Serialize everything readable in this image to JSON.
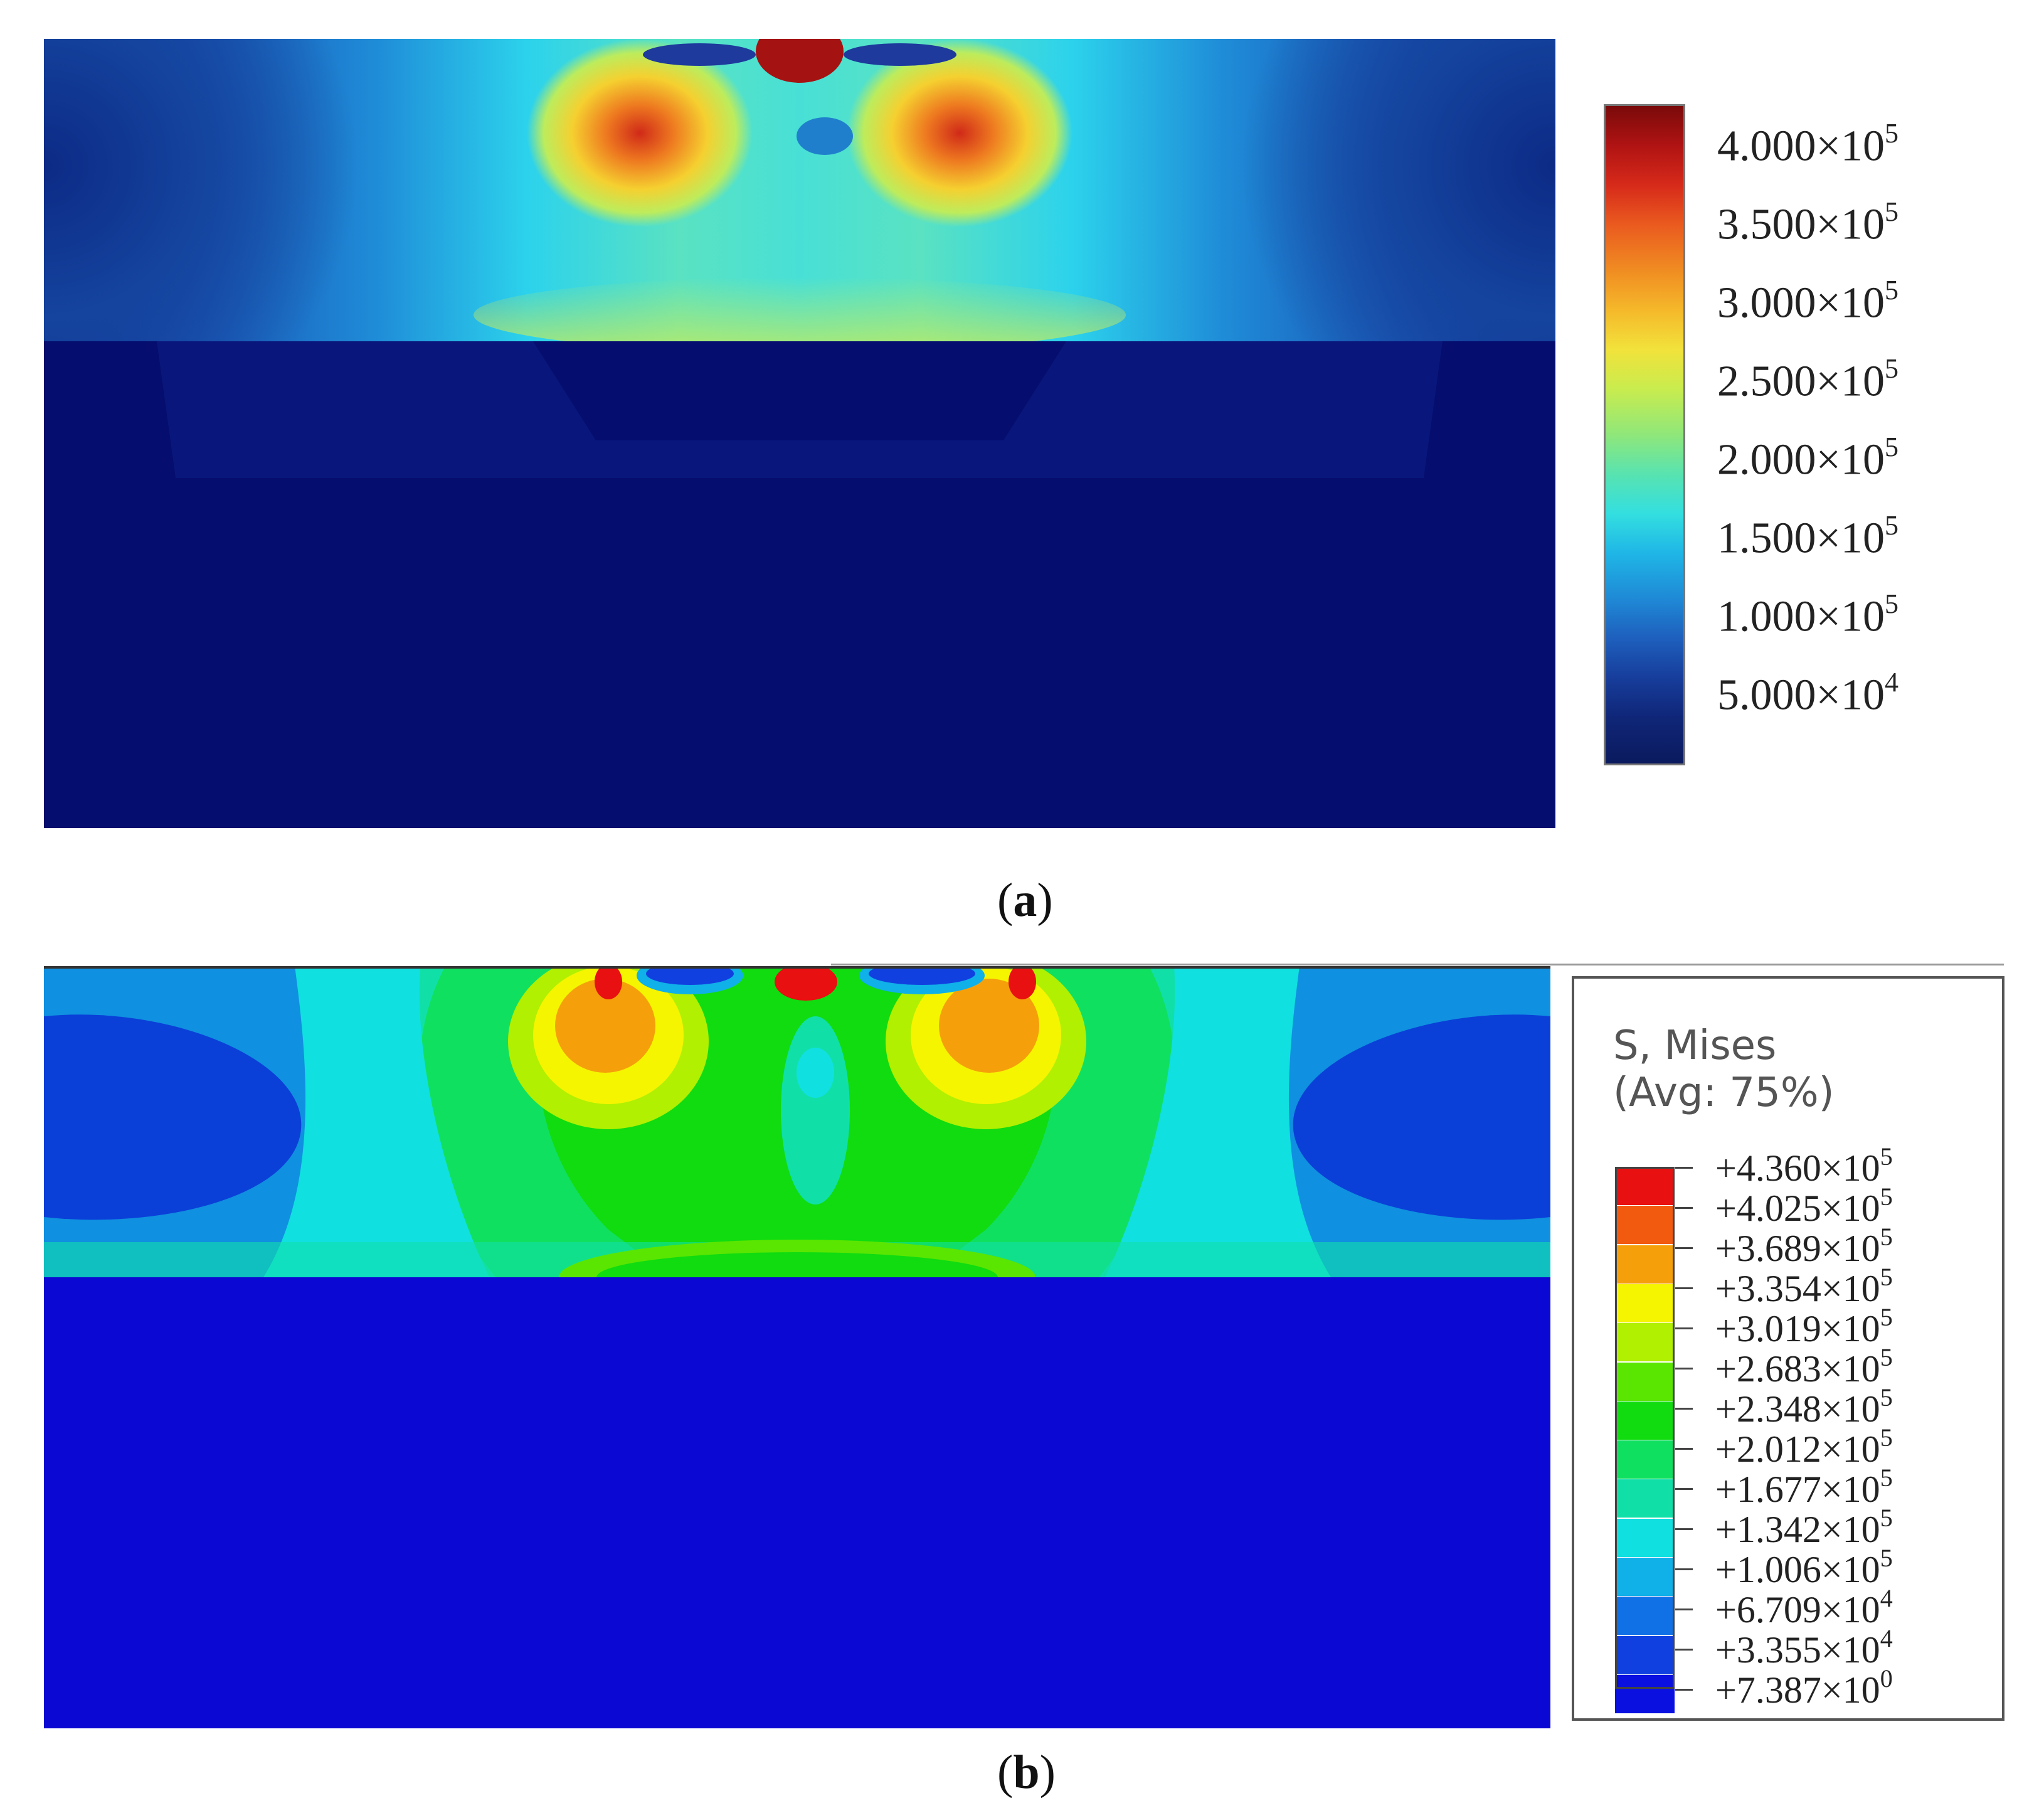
{
  "panel_a": {
    "caption_letter": "a",
    "colorbar": {
      "labels": [
        {
          "mantissa": "4.000×10",
          "exponent": "5"
        },
        {
          "mantissa": "3.500×10",
          "exponent": "5"
        },
        {
          "mantissa": "3.000×10",
          "exponent": "5"
        },
        {
          "mantissa": "2.500×10",
          "exponent": "5"
        },
        {
          "mantissa": "2.000×10",
          "exponent": "5"
        },
        {
          "mantissa": "1.500×10",
          "exponent": "5"
        },
        {
          "mantissa": "1.000×10",
          "exponent": "5"
        },
        {
          "mantissa": "5.000×10",
          "exponent": "4"
        }
      ]
    }
  },
  "panel_b": {
    "caption_letter": "b",
    "legend": {
      "title_line1": "S, Mises",
      "title_line2": "(Avg: 75%)",
      "labels": [
        {
          "mantissa": "+4.360×10",
          "exponent": "5"
        },
        {
          "mantissa": "+4.025×10",
          "exponent": "5"
        },
        {
          "mantissa": "+3.689×10",
          "exponent": "5"
        },
        {
          "mantissa": "+3.354×10",
          "exponent": "5"
        },
        {
          "mantissa": "+3.019×10",
          "exponent": "5"
        },
        {
          "mantissa": "+2.683×10",
          "exponent": "5"
        },
        {
          "mantissa": "+2.348×10",
          "exponent": "5"
        },
        {
          "mantissa": "+2.012×10",
          "exponent": "5"
        },
        {
          "mantissa": "+1.677×10",
          "exponent": "5"
        },
        {
          "mantissa": "+1.342×10",
          "exponent": "5"
        },
        {
          "mantissa": "+1.006×10",
          "exponent": "5"
        },
        {
          "mantissa": "+6.709×10",
          "exponent": "4"
        },
        {
          "mantissa": "+3.355×10",
          "exponent": "4"
        },
        {
          "mantissa": "+7.387×10",
          "exponent": "0"
        }
      ],
      "band_colors": [
        "#e81010",
        "#f25a10",
        "#f5a00a",
        "#f5f500",
        "#b0f000",
        "#5ae600",
        "#10dc10",
        "#10e060",
        "#10e0a8",
        "#10e0e0",
        "#10b0e8",
        "#1070e6",
        "#1040e0",
        "#0a10e0"
      ]
    }
  }
}
